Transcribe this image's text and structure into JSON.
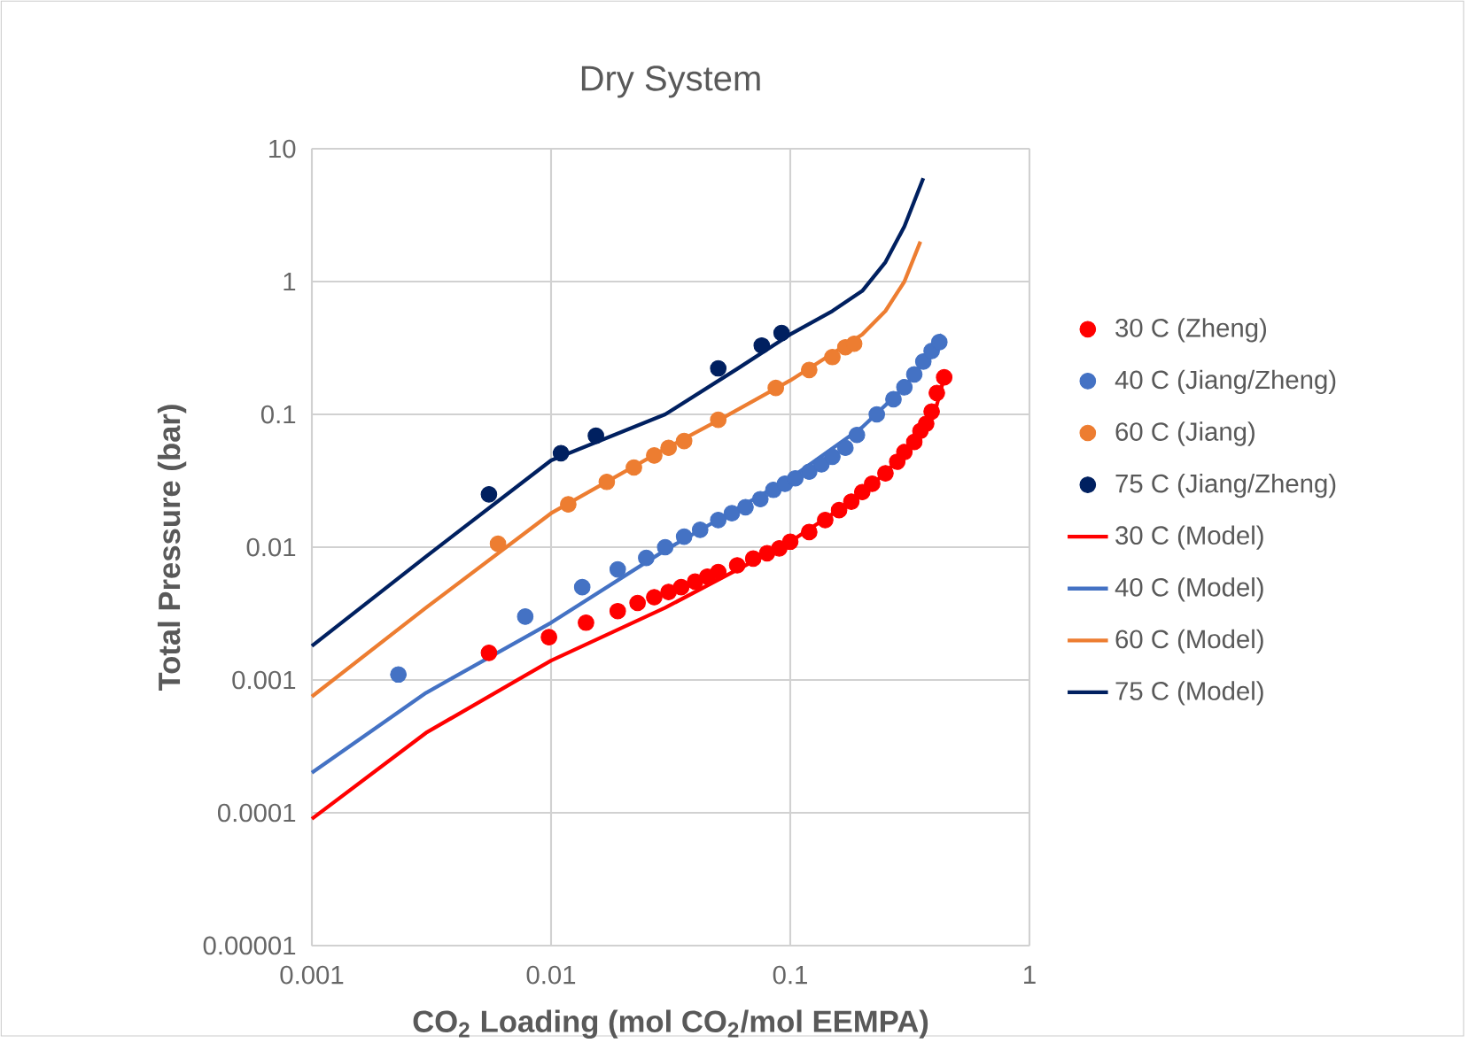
{
  "chart_data": {
    "type": "scatter",
    "title": "Dry System",
    "xlabel": "CO$_{2}$ Loading (mol CO$_{2}$/mol EEMPA)",
    "ylabel": "Total Pressure (bar)",
    "log": "xy",
    "grid": true,
    "legend": "right",
    "xlim": [
      0.001,
      1
    ],
    "ylim": [
      1e-05,
      10
    ],
    "xticks": [
      0.001,
      0.01,
      0.1,
      1
    ],
    "yticks": [
      {
        "value": 1e-05,
        "label": "0.00001"
      },
      {
        "value": 0.0001,
        "label": "0.0001"
      },
      {
        "value": 0.001,
        "label": "0.001"
      },
      {
        "value": 0.01,
        "label": "0.01"
      },
      {
        "value": 0.1,
        "label": "0.1"
      },
      {
        "value": 1,
        "label": "1"
      },
      {
        "value": 10,
        "label": "10"
      }
    ],
    "series": [
      {
        "name": "30 C (Zheng)",
        "marker": "circle",
        "color": "#ff0000",
        "x": [
          0.0055,
          0.0098,
          0.014,
          0.019,
          0.023,
          0.027,
          0.031,
          0.035,
          0.04,
          0.045,
          0.05,
          0.06,
          0.07,
          0.08,
          0.09,
          0.1,
          0.12,
          0.14,
          0.16,
          0.18,
          0.2,
          0.22,
          0.25,
          0.28,
          0.3,
          0.33,
          0.35,
          0.37,
          0.39,
          0.41,
          0.44
        ],
        "values": [
          0.0016,
          0.0021,
          0.0027,
          0.0033,
          0.0038,
          0.0042,
          0.0046,
          0.005,
          0.0055,
          0.006,
          0.0065,
          0.0073,
          0.0082,
          0.009,
          0.0098,
          0.011,
          0.013,
          0.016,
          0.019,
          0.022,
          0.026,
          0.03,
          0.036,
          0.044,
          0.052,
          0.062,
          0.075,
          0.085,
          0.105,
          0.145,
          0.19
        ]
      },
      {
        "name": "40 C (Jiang/Zheng)",
        "marker": "circle",
        "color": "#4472c4",
        "x": [
          0.0023,
          0.0078,
          0.0135,
          0.019,
          0.025,
          0.03,
          0.036,
          0.042,
          0.05,
          0.057,
          0.065,
          0.075,
          0.085,
          0.095,
          0.105,
          0.12,
          0.135,
          0.15,
          0.17,
          0.19,
          0.23,
          0.27,
          0.3,
          0.33,
          0.36,
          0.39,
          0.42
        ],
        "values": [
          0.0011,
          0.003,
          0.005,
          0.0068,
          0.0083,
          0.01,
          0.012,
          0.0135,
          0.016,
          0.018,
          0.02,
          0.023,
          0.027,
          0.03,
          0.033,
          0.037,
          0.042,
          0.048,
          0.056,
          0.07,
          0.1,
          0.13,
          0.16,
          0.2,
          0.25,
          0.3,
          0.35
        ]
      },
      {
        "name": "60 C (Jiang)",
        "marker": "circle",
        "color": "#ed7d31",
        "x": [
          0.006,
          0.0118,
          0.0171,
          0.0222,
          0.027,
          0.031,
          0.036,
          0.05,
          0.087,
          0.12,
          0.15,
          0.17,
          0.185
        ],
        "values": [
          0.0106,
          0.021,
          0.031,
          0.0398,
          0.049,
          0.056,
          0.063,
          0.091,
          0.158,
          0.216,
          0.27,
          0.32,
          0.34
        ]
      },
      {
        "name": "75 C (Jiang/Zheng)",
        "marker": "circle",
        "color": "#002060",
        "x": [
          0.0055,
          0.011,
          0.0154,
          0.05,
          0.076,
          0.092
        ],
        "values": [
          0.025,
          0.051,
          0.069,
          0.222,
          0.33,
          0.41
        ]
      },
      {
        "name": "30 C (Model)",
        "type": "line",
        "marker": "none",
        "color": "#ff0000",
        "x": [
          0.001,
          0.003,
          0.01,
          0.03,
          0.1,
          0.2,
          0.3,
          0.4,
          0.44
        ],
        "values": [
          9e-05,
          0.0004,
          0.0014,
          0.0035,
          0.011,
          0.025,
          0.05,
          0.1,
          0.19
        ]
      },
      {
        "name": "40 C (Model)",
        "type": "line",
        "marker": "none",
        "color": "#4472c4",
        "x": [
          0.001,
          0.003,
          0.01,
          0.03,
          0.1,
          0.2,
          0.3,
          0.38,
          0.43
        ],
        "values": [
          0.0002,
          0.0008,
          0.0027,
          0.0095,
          0.033,
          0.08,
          0.16,
          0.28,
          0.4
        ]
      },
      {
        "name": "60 C (Model)",
        "type": "line",
        "marker": "none",
        "color": "#ed7d31",
        "x": [
          0.001,
          0.003,
          0.01,
          0.03,
          0.05,
          0.1,
          0.2,
          0.25,
          0.3,
          0.35
        ],
        "values": [
          0.00075,
          0.0035,
          0.018,
          0.055,
          0.09,
          0.18,
          0.4,
          0.6,
          1.0,
          2.0
        ]
      },
      {
        "name": "75 C (Model)",
        "type": "line",
        "marker": "none",
        "color": "#002060",
        "x": [
          0.001,
          0.003,
          0.01,
          0.03,
          0.06,
          0.1,
          0.15,
          0.2,
          0.25,
          0.3,
          0.36
        ],
        "values": [
          0.0018,
          0.0085,
          0.045,
          0.1,
          0.22,
          0.4,
          0.6,
          0.85,
          1.4,
          2.6,
          6.0
        ]
      }
    ]
  }
}
